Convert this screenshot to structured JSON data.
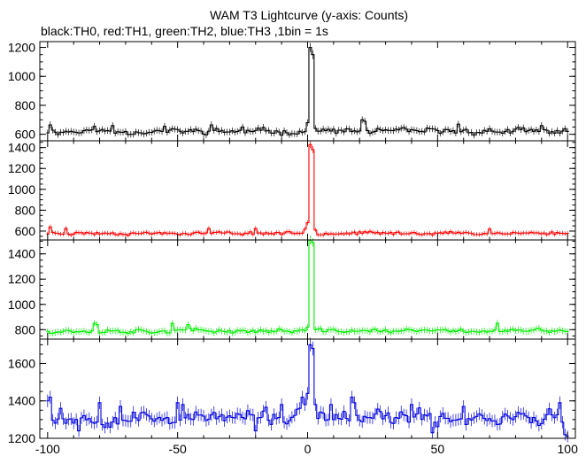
{
  "chart_data": {
    "type": "line",
    "title": "WAM T3 Lightcurve (y-axis: Counts)",
    "subtitle": "black:TH0, red:TH1, green:TH2, blue:TH3 ,1bin = 1s",
    "xlim": [
      -103,
      103
    ],
    "x_ticks": [
      "-100",
      "-50",
      "0",
      "50",
      "100"
    ],
    "x_tick_values": [
      -100,
      -50,
      0,
      50,
      100
    ],
    "x_range": [
      -100,
      100
    ],
    "bin_width": 1,
    "grid": false,
    "panels": [
      {
        "name": "TH0",
        "color": "#000000",
        "ylim": [
          555,
          1240
        ],
        "y_ticks": [
          "600",
          "800",
          "1000",
          "1200"
        ],
        "y_tick_values": [
          600,
          800,
          1000,
          1200
        ],
        "baseline": 620,
        "noise": 22,
        "seed": 11,
        "features": [
          {
            "x": -99,
            "y": 665
          },
          {
            "x": -82,
            "y": 655
          },
          {
            "x": -75,
            "y": 660
          },
          {
            "x": -55,
            "y": 655
          },
          {
            "x": -37,
            "y": 665
          },
          {
            "x": -25,
            "y": 650
          },
          {
            "x": 0,
            "y": 680
          },
          {
            "x": 1,
            "y": 1200
          },
          {
            "x": 2,
            "y": 1150
          },
          {
            "x": 3,
            "y": 640
          },
          {
            "x": 21,
            "y": 700
          },
          {
            "x": 22,
            "y": 690
          },
          {
            "x": 58,
            "y": 670
          },
          {
            "x": 90,
            "y": 660
          }
        ]
      },
      {
        "name": "TH1",
        "color": "#ff0000",
        "ylim": [
          515,
          1465
        ],
        "y_ticks": [
          "600",
          "800",
          "1000",
          "1200",
          "1400"
        ],
        "y_tick_values": [
          600,
          800,
          1000,
          1200,
          1400
        ],
        "baseline": 580,
        "noise": 16,
        "seed": 23,
        "features": [
          {
            "x": -99,
            "y": 640
          },
          {
            "x": -93,
            "y": 625
          },
          {
            "x": -38,
            "y": 625
          },
          {
            "x": -20,
            "y": 625
          },
          {
            "x": -1,
            "y": 620
          },
          {
            "x": 0,
            "y": 680
          },
          {
            "x": 1,
            "y": 1430
          },
          {
            "x": 2,
            "y": 1380
          },
          {
            "x": 3,
            "y": 610
          },
          {
            "x": 70,
            "y": 620
          }
        ]
      },
      {
        "name": "TH2",
        "color": "#00ee00",
        "ylim": [
          725,
          1510
        ],
        "y_ticks": [
          "800",
          "1000",
          "1200",
          "1400"
        ],
        "y_tick_values": [
          800,
          1000,
          1200,
          1400
        ],
        "baseline": 790,
        "noise": 18,
        "seed": 37,
        "features": [
          {
            "x": -82,
            "y": 850
          },
          {
            "x": -81,
            "y": 840
          },
          {
            "x": -52,
            "y": 850
          },
          {
            "x": -46,
            "y": 840
          },
          {
            "x": 0,
            "y": 820
          },
          {
            "x": 1,
            "y": 1510
          },
          {
            "x": 2,
            "y": 1490
          },
          {
            "x": 3,
            "y": 800
          },
          {
            "x": 73,
            "y": 850
          }
        ]
      },
      {
        "name": "TH3",
        "color": "#0000dd",
        "ylim": [
          1200,
          1730
        ],
        "y_ticks": [
          "1200",
          "1400",
          "1600"
        ],
        "y_tick_values": [
          1200,
          1400,
          1600
        ],
        "baseline": 1310,
        "noise": 42,
        "seed": 53,
        "features": [
          {
            "x": -100,
            "y": 1400
          },
          {
            "x": -99,
            "y": 1420
          },
          {
            "x": -95,
            "y": 1360
          },
          {
            "x": -88,
            "y": 1240
          },
          {
            "x": -80,
            "y": 1390
          },
          {
            "x": -72,
            "y": 1370
          },
          {
            "x": -50,
            "y": 1390
          },
          {
            "x": -48,
            "y": 1380
          },
          {
            "x": -20,
            "y": 1240
          },
          {
            "x": -10,
            "y": 1380
          },
          {
            "x": -3,
            "y": 1360
          },
          {
            "x": -2,
            "y": 1420
          },
          {
            "x": -1,
            "y": 1380
          },
          {
            "x": 0,
            "y": 1440
          },
          {
            "x": 1,
            "y": 1700
          },
          {
            "x": 2,
            "y": 1680
          },
          {
            "x": 3,
            "y": 1380
          },
          {
            "x": 9,
            "y": 1380
          },
          {
            "x": 17,
            "y": 1420
          },
          {
            "x": 18,
            "y": 1390
          },
          {
            "x": 40,
            "y": 1380
          },
          {
            "x": 48,
            "y": 1230
          },
          {
            "x": 60,
            "y": 1370
          },
          {
            "x": 97,
            "y": 1390
          },
          {
            "x": 99,
            "y": 1220
          },
          {
            "x": 100,
            "y": 1210
          }
        ]
      }
    ]
  }
}
